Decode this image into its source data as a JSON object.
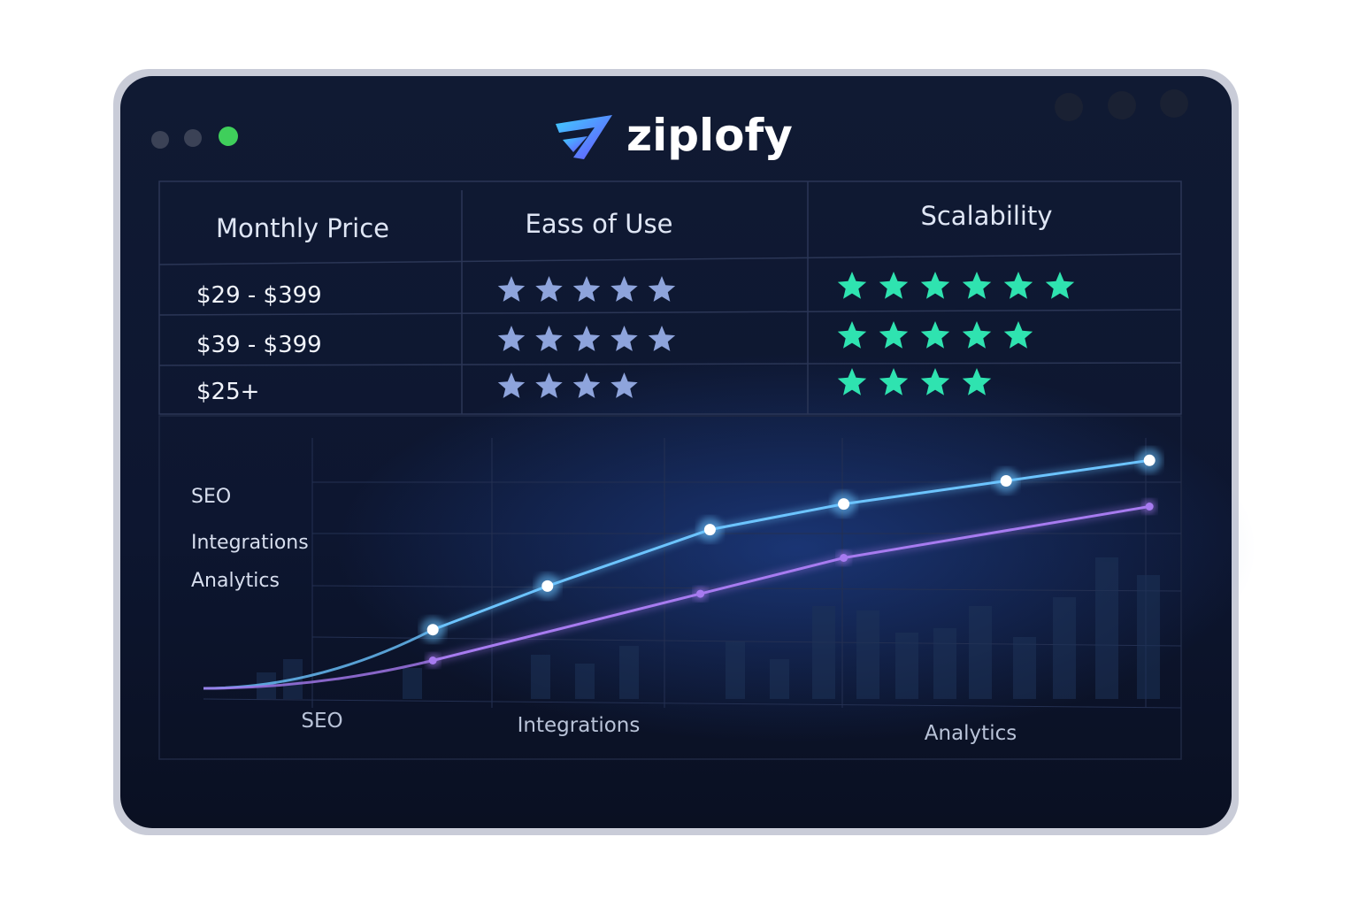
{
  "brand": "ziplofy",
  "table": {
    "columns": [
      "Monthly Price",
      "Eass of Use",
      "Scalability"
    ],
    "rows": [
      {
        "price": "$29 - $399",
        "ease": 5,
        "scalability": 6
      },
      {
        "price": "$39 - $399",
        "ease": 5,
        "scalability": 5
      },
      {
        "price": "$25+",
        "ease": 4,
        "scalability": 4
      }
    ]
  },
  "chart_data": {
    "type": "line",
    "row_labels": [
      "SEO",
      "Integrations",
      "Analytics"
    ],
    "x_labels": [
      "SEO",
      "Integrations",
      "Analytics"
    ],
    "xlim": [
      0,
      100
    ],
    "ylim": [
      0,
      100
    ],
    "series": [
      {
        "color": "#6cc4ff",
        "x": [
          24,
          36,
          53,
          67,
          84,
          99
        ],
        "values": [
          27,
          44,
          66,
          76,
          85,
          93
        ]
      },
      {
        "color": "#a77bf0",
        "x": [
          24,
          52,
          67,
          99
        ],
        "values": [
          15,
          41,
          55,
          75
        ]
      }
    ]
  }
}
